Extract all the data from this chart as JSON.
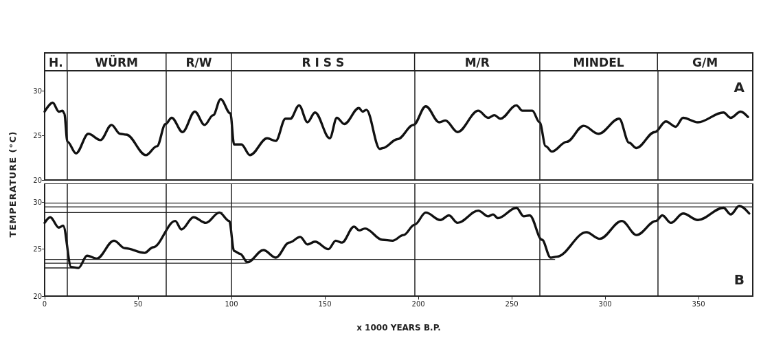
{
  "chart_data": [
    {
      "type": "line",
      "ylabel": "TEMPERATURE (°C)",
      "xlim": [
        0,
        379
      ],
      "ylim": [
        20,
        32.3
      ],
      "yticks": [
        20,
        25,
        30
      ],
      "tick_labels": "y",
      "marker": "none",
      "line_style": "solid",
      "annotations": [
        "H.",
        "WÜRM",
        "R/W",
        "R I S S",
        "M/R",
        "MINDEL",
        "G/M",
        "A"
      ],
      "ref_lines": [
        {
          "axis": "x",
          "value": 12
        },
        {
          "axis": "x",
          "value": 65
        },
        {
          "axis": "x",
          "value": 100
        },
        {
          "axis": "x",
          "value": 198
        },
        {
          "axis": "x",
          "value": 265
        },
        {
          "axis": "x",
          "value": 328
        }
      ],
      "x": [
        0,
        4.3,
        7.6,
        9.6,
        10.5,
        12.2,
        16.8,
        23.4,
        29.9,
        35.8,
        40.4,
        43.7,
        54.2,
        60.1,
        64.7,
        68,
        73.8,
        80.4,
        85.6,
        90.2,
        94.2,
        99.4,
        101.4,
        105.3,
        109.9,
        119.1,
        123.7,
        128.9,
        131.5,
        136.2,
        140.7,
        144.7,
        152.6,
        156.4,
        160.4,
        168.2,
        170.2,
        172.2,
        179.4,
        181,
        188.9,
        197.4,
        204,
        211.2,
        214.5,
        221,
        232.1,
        237.4,
        240.7,
        243.9,
        252.5,
        255.7,
        261,
        264.9,
        268.2,
        271.5,
        279.4,
        288.5,
        296.4,
        307.5,
        312.8,
        316.7,
        326.6,
        332.5,
        337.7,
        341.7,
        349.6,
        363.3,
        367.2,
        372.5,
        376.4
      ],
      "series": [
        {
          "color": "#111111",
          "values": [
            27.7,
            28.7,
            27.7,
            27.8,
            27.5,
            24.3,
            23.0,
            25.2,
            24.5,
            26.2,
            25.2,
            25.1,
            22.8,
            23.8,
            26.3,
            27.0,
            25.4,
            27.7,
            26.2,
            27.3,
            29.1,
            27.5,
            24.0,
            24.0,
            22.8,
            24.7,
            24.4,
            26.9,
            26.9,
            28.4,
            26.5,
            27.6,
            24.7,
            27.0,
            26.3,
            28.1,
            27.7,
            27.9,
            23.5,
            23.6,
            24.6,
            26.2,
            28.3,
            26.5,
            26.7,
            25.4,
            27.8,
            27.0,
            27.3,
            26.9,
            28.4,
            27.8,
            27.8,
            26.5,
            23.8,
            23.2,
            24.3,
            26.1,
            25.2,
            26.9,
            24.2,
            23.6,
            25.4,
            26.6,
            26.0,
            27.0,
            26.5,
            27.6,
            27.0,
            27.7,
            27.1
          ]
        }
      ]
    },
    {
      "type": "line",
      "xlabel": "x 1000 YEARS B.P.",
      "xlim": [
        0,
        379
      ],
      "xticks": [
        0,
        50,
        100,
        150,
        200,
        250,
        300,
        350
      ],
      "ylim": [
        20,
        32
      ],
      "yticks": [
        20,
        25,
        30
      ],
      "marker": "none",
      "line_style": "solid",
      "annotations": [
        "B"
      ],
      "ref_lines": [
        {
          "axis": "x",
          "value": 12
        },
        {
          "axis": "x",
          "value": 65
        },
        {
          "axis": "x",
          "value": 100
        },
        {
          "axis": "x",
          "value": 198
        },
        {
          "axis": "x",
          "value": 265
        },
        {
          "axis": "x",
          "value": 328
        }
      ],
      "x": [
        0,
        3,
        7.6,
        9.9,
        14.2,
        18.1,
        22.7,
        27.9,
        37.1,
        43,
        53.5,
        58,
        69.9,
        73.2,
        79.7,
        86.3,
        93.5,
        98.8,
        101.4,
        104.6,
        108.6,
        117.1,
        123.7,
        130.9,
        136.8,
        140.7,
        144.7,
        151.9,
        155.8,
        159.1,
        165.6,
        168.3,
        171.5,
        180.7,
        186.2,
        192.1,
        198,
        204,
        211.8,
        216.4,
        221,
        232.1,
        237.4,
        240,
        242.6,
        252.5,
        256.4,
        259.6,
        266.2,
        270.8,
        274.1,
        289.9,
        297.1,
        308.9,
        316.8,
        327.2,
        330.6,
        335.2,
        341.7,
        349.6,
        363.3,
        367.2,
        371.8,
        377.1
      ],
      "series": [
        {
          "color": "#111111",
          "values": [
            27.8,
            28.4,
            27.3,
            27.5,
            23.1,
            23.0,
            24.3,
            24.0,
            25.9,
            25.1,
            24.6,
            25.2,
            28.0,
            27.1,
            28.4,
            27.8,
            28.9,
            28.0,
            24.8,
            24.5,
            23.6,
            24.9,
            24.1,
            25.7,
            26.3,
            25.5,
            25.8,
            25.0,
            25.9,
            25.7,
            27.4,
            27.0,
            27.2,
            26.0,
            25.9,
            26.5,
            27.6,
            28.9,
            28.1,
            28.6,
            27.8,
            29.1,
            28.5,
            28.7,
            28.3,
            29.4,
            28.5,
            28.6,
            26.0,
            24.1,
            24.2,
            26.8,
            26.1,
            28.0,
            26.5,
            28.0,
            28.6,
            27.8,
            28.8,
            28.1,
            29.4,
            28.7,
            29.6,
            28.8
          ]
        },
        {
          "color": "#222222",
          "x": [
            0,
            379
          ],
          "values": [
            29.9,
            29.9
          ]
        },
        {
          "color": "#222222",
          "x": [
            0,
            379
          ],
          "values": [
            29.5,
            29.5
          ]
        },
        {
          "color": "#222222",
          "x": [
            0,
            95
          ],
          "values": [
            28.9,
            28.9
          ]
        },
        {
          "color": "#222222",
          "x": [
            0,
            273
          ],
          "values": [
            23.9,
            23.9
          ]
        },
        {
          "color": "#222222",
          "x": [
            0,
            108
          ],
          "values": [
            23.5,
            23.5
          ]
        },
        {
          "color": "#222222",
          "x": [
            0,
            16
          ],
          "values": [
            23.0,
            23.0
          ]
        }
      ]
    }
  ]
}
